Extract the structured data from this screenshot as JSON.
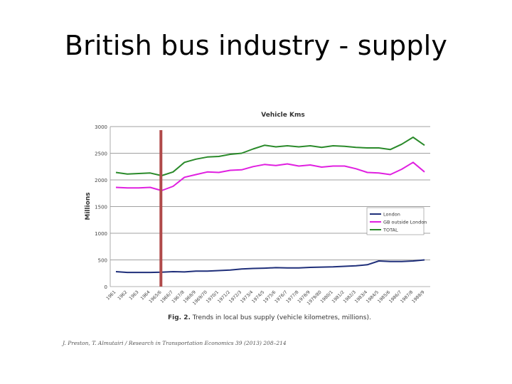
{
  "slide": {
    "title": "British bus industry - supply"
  },
  "caption": {
    "prefix": "Fig. 2.",
    "text": "Trends in local bus supply (vehicle kilometres, millions)."
  },
  "citation": "J. Preston, T. Almutairi / Research in Transportation Economics 39 (2013) 208–214",
  "chart_data": {
    "type": "line",
    "title": "Vehicle Kms",
    "ylabel": "Millions",
    "xlabel": "",
    "ylim": [
      0,
      3000
    ],
    "yticks": [
      0,
      500,
      1000,
      1500,
      2000,
      2500,
      3000
    ],
    "grid": true,
    "legend_position": "right",
    "x": [
      "1961",
      "1962",
      "1963",
      "1964",
      "1965/6",
      "1966/7",
      "1967/8",
      "1968/9",
      "1969/70",
      "1970/1",
      "1971/2",
      "1972/3",
      "1973/4",
      "1974/5",
      "1975/6",
      "1976/7",
      "1977/8",
      "1978/9",
      "1979/80",
      "1980/1",
      "1981/2",
      "1982/3",
      "1983/4",
      "1984/5",
      "1985/6",
      "1986/7",
      "1987/8",
      "1988/9"
    ],
    "xtick_labels": [
      "1961",
      "1962",
      "1963",
      "1964",
      "1965/6",
      "1966/7",
      "1967/8",
      "1968/9",
      "1969/70",
      "1970/1",
      "1971/2",
      "1972/3",
      "1973/4",
      "1974/5",
      "1975/6",
      "1976/7",
      "1977/8",
      "1978/9",
      "1979/80",
      "1980/1",
      "1981/2",
      "1982/3",
      "1983/4",
      "1984/5",
      "1985/6",
      "1986/7",
      "1987/8",
      "1988/9"
    ],
    "series": [
      {
        "name": "London",
        "color": "#1f2f7a",
        "values": [
          280,
          265,
          265,
          265,
          270,
          280,
          275,
          290,
          290,
          300,
          310,
          330,
          340,
          345,
          355,
          350,
          350,
          360,
          365,
          370,
          380,
          390,
          410,
          480,
          470,
          470,
          480,
          500
        ]
      },
      {
        "name": "GB outside London",
        "color": "#e020e0",
        "values": [
          1860,
          1850,
          1850,
          1860,
          1800,
          1880,
          2050,
          2100,
          2150,
          2140,
          2180,
          2190,
          2250,
          2290,
          2270,
          2300,
          2260,
          2280,
          2240,
          2260,
          2260,
          2210,
          2140,
          2130,
          2100,
          2200,
          2330,
          2150
        ]
      },
      {
        "name": "TOTAL",
        "color": "#2a8a2a",
        "values": [
          2140,
          2110,
          2120,
          2130,
          2080,
          2150,
          2330,
          2390,
          2430,
          2440,
          2480,
          2500,
          2580,
          2650,
          2620,
          2640,
          2620,
          2640,
          2610,
          2640,
          2630,
          2610,
          2600,
          2600,
          2570,
          2670,
          2800,
          2650
        ]
      }
    ],
    "marker": {
      "color": "#b04a4a",
      "at_x": "1965/6"
    }
  }
}
